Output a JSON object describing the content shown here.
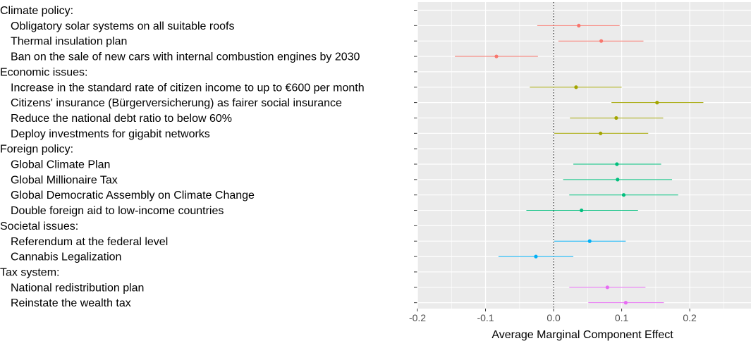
{
  "chart_data": {
    "type": "scatter",
    "xlabel": "Average Marginal Component Effect",
    "xlim": [
      -0.2,
      0.29
    ],
    "x_ticks": [
      "-0.2",
      "-0.1",
      "0.0",
      "0.1",
      "0.2"
    ],
    "x_tick_values": [
      -0.2,
      -0.1,
      0.0,
      0.1,
      0.2
    ],
    "reference_line": 0,
    "grid": true,
    "legend": "none",
    "rows": [
      {
        "label": "Climate policy:",
        "header": true
      },
      {
        "label": "Obligatory solar systems on all suitable roofs",
        "estimate": 0.037,
        "low": -0.024,
        "high": 0.097,
        "color": "#F8766D"
      },
      {
        "label": "Thermal insulation plan",
        "estimate": 0.07,
        "low": 0.007,
        "high": 0.132,
        "color": "#F8766D"
      },
      {
        "label": "Ban on the sale of new cars with internal combustion engines by 2030",
        "estimate": -0.084,
        "low": -0.145,
        "high": -0.023,
        "color": "#F8766D"
      },
      {
        "label": "Economic issues:",
        "header": true
      },
      {
        "label": "Increase in the standard rate of citizen income to up to €600 per month",
        "estimate": 0.033,
        "low": -0.035,
        "high": 0.1,
        "color": "#A3A500"
      },
      {
        "label": "Citizens' insurance (Bürgerversicherung) as fairer social insurance",
        "estimate": 0.152,
        "low": 0.085,
        "high": 0.22,
        "color": "#A3A500"
      },
      {
        "label": "Reduce the national debt ratio to below 60%",
        "estimate": 0.092,
        "low": 0.024,
        "high": 0.161,
        "color": "#A3A500"
      },
      {
        "label": "Deploy investments for gigabit networks",
        "estimate": 0.069,
        "low": 0.001,
        "high": 0.139,
        "color": "#A3A500"
      },
      {
        "label": "Foreign policy:",
        "header": true
      },
      {
        "label": "Global Climate Plan",
        "estimate": 0.093,
        "low": 0.029,
        "high": 0.158,
        "color": "#00BF7D"
      },
      {
        "label": "Global Millionaire Tax",
        "estimate": 0.094,
        "low": 0.014,
        "high": 0.174,
        "color": "#00BF7D"
      },
      {
        "label": "Global Democratic Assembly on Climate Change",
        "estimate": 0.103,
        "low": 0.023,
        "high": 0.183,
        "color": "#00BF7D"
      },
      {
        "label": "Double foreign aid to low-income countries",
        "estimate": 0.041,
        "low": -0.04,
        "high": 0.124,
        "color": "#00BF7D"
      },
      {
        "label": "Societal issues:",
        "header": true
      },
      {
        "label": "Referendum at the federal level",
        "estimate": 0.053,
        "low": 0.001,
        "high": 0.106,
        "color": "#00B0F6"
      },
      {
        "label": "Cannabis Legalization",
        "estimate": -0.026,
        "low": -0.081,
        "high": 0.029,
        "color": "#00B0F6"
      },
      {
        "label": "Tax system:",
        "header": true
      },
      {
        "label": "National redistribution plan",
        "estimate": 0.079,
        "low": 0.023,
        "high": 0.135,
        "color": "#E76BF3"
      },
      {
        "label": "Reinstate the wealth tax",
        "estimate": 0.106,
        "low": 0.051,
        "high": 0.162,
        "color": "#E76BF3"
      }
    ]
  }
}
